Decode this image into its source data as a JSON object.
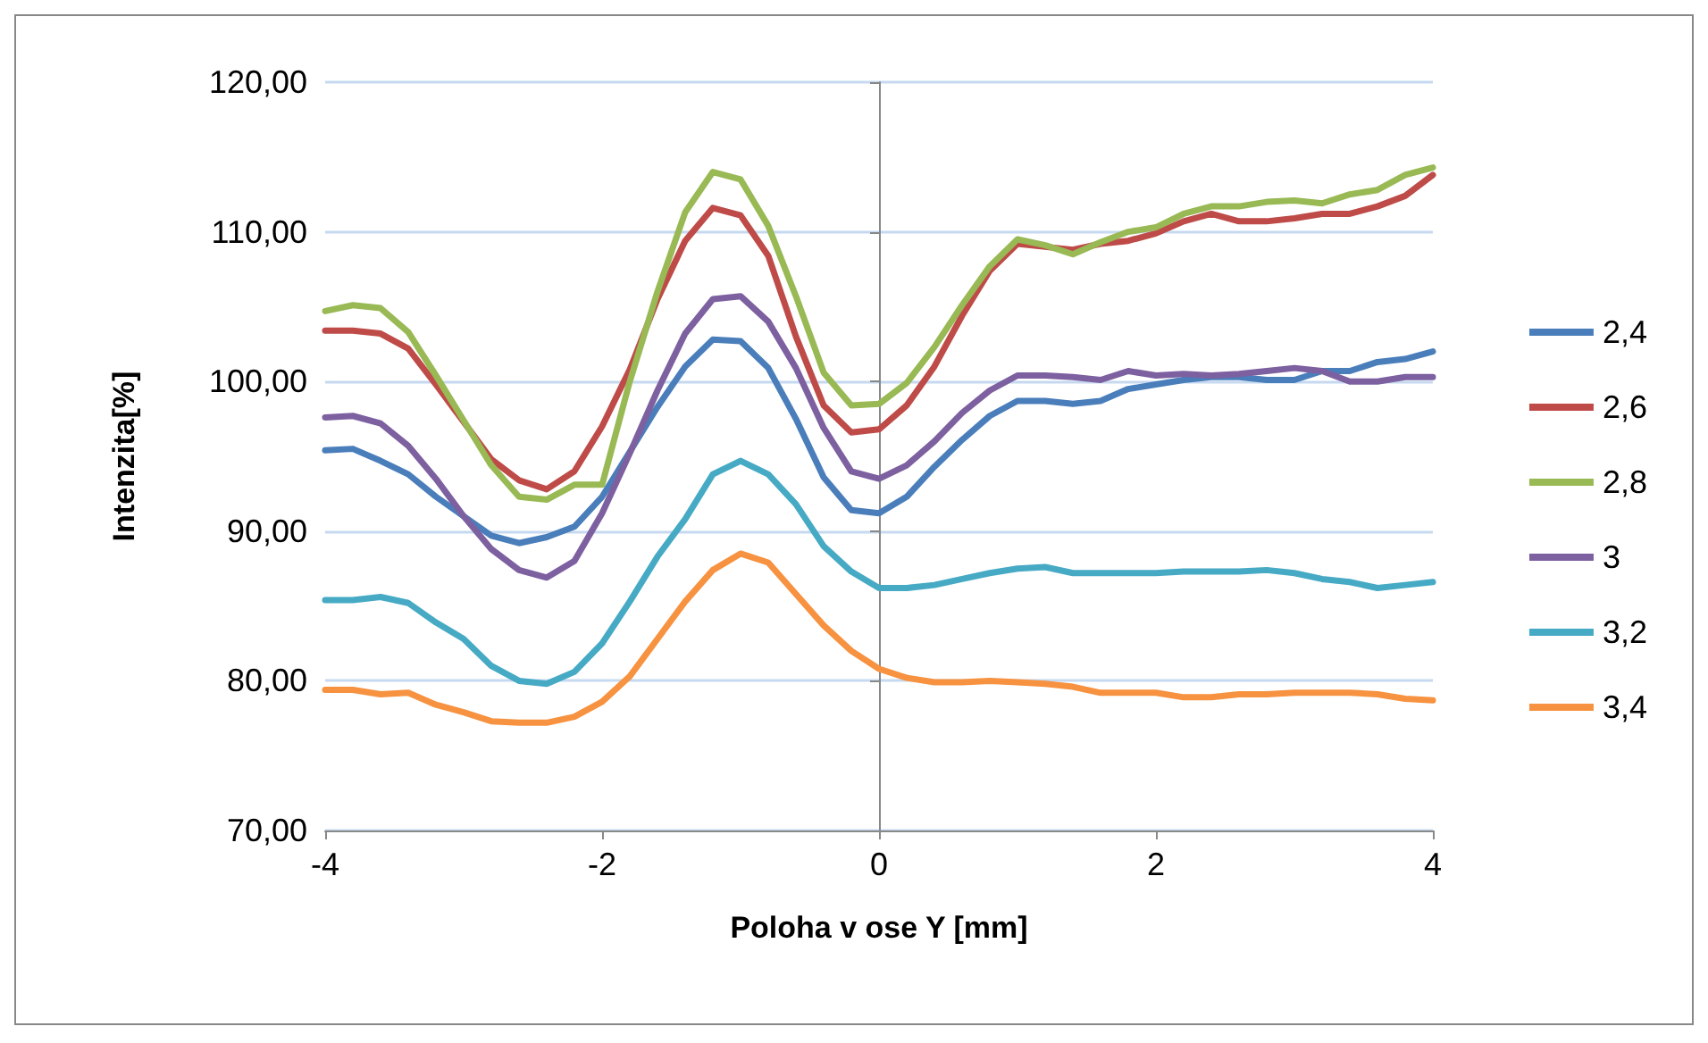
{
  "chart_data": {
    "type": "line",
    "xlabel": "Poloha v ose Y [mm]",
    "ylabel": "Intenzita[%]",
    "x": [
      -4,
      -3.8,
      -3.6,
      -3.4,
      -3.2,
      -3,
      -2.8,
      -2.6,
      -2.4,
      -2.2,
      -2,
      -1.8,
      -1.6,
      -1.4,
      -1.2,
      -1,
      -0.8,
      -0.6,
      -0.4,
      -0.2,
      0,
      0.2,
      0.4,
      0.6,
      0.8,
      1,
      1.2,
      1.4,
      1.6,
      1.8,
      2,
      2.2,
      2.4,
      2.6,
      2.8,
      3,
      3.2,
      3.4,
      3.6,
      3.8,
      4
    ],
    "xlim": [
      -4,
      4
    ],
    "xticks": [
      -4,
      -2,
      0,
      2,
      4
    ],
    "ylim": [
      70,
      120
    ],
    "yticks": [
      {
        "value": 70,
        "label": "70,00"
      },
      {
        "value": 80,
        "label": "80,00"
      },
      {
        "value": 90,
        "label": "90,00"
      },
      {
        "value": 100,
        "label": "100,00"
      },
      {
        "value": 110,
        "label": "110,00"
      },
      {
        "value": 120,
        "label": "120,00"
      }
    ],
    "grid": "y",
    "legend": "right",
    "marker": "none",
    "line_style": "solid",
    "series": [
      {
        "name": "2,4",
        "color": "#4a7ebb",
        "values": [
          95.4,
          95.5,
          94.7,
          93.8,
          92.3,
          91,
          89.7,
          89.2,
          89.6,
          90.3,
          92.3,
          95.3,
          98.3,
          101,
          102.8,
          102.7,
          100.9,
          97.5,
          93.6,
          91.4,
          91.2,
          92.3,
          94.3,
          96.1,
          97.7,
          98.7,
          98.7,
          98.5,
          98.7,
          99.5,
          99.8,
          100.1,
          100.3,
          100.3,
          100.1,
          100.1,
          100.7,
          100.7,
          101.3,
          101.5,
          102
        ]
      },
      {
        "name": "2,6",
        "color": "#be4b48",
        "values": [
          103.4,
          103.4,
          103.2,
          102.2,
          99.8,
          97.3,
          94.8,
          93.4,
          92.8,
          94,
          97,
          100.8,
          105.5,
          109.4,
          111.6,
          111.1,
          108.4,
          103,
          98.4,
          96.6,
          96.8,
          98.4,
          101,
          104.4,
          107.4,
          109.2,
          109,
          108.8,
          109.2,
          109.4,
          109.9,
          110.7,
          111.2,
          110.7,
          110.7,
          110.9,
          111.2,
          111.2,
          111.7,
          112.4,
          113.8
        ]
      },
      {
        "name": "2,8",
        "color": "#98b954",
        "values": [
          104.7,
          105.1,
          104.9,
          103.3,
          100.4,
          97.4,
          94.4,
          92.3,
          92.1,
          93.1,
          93.1,
          100,
          106,
          111.3,
          114,
          113.5,
          110.4,
          105.7,
          100.6,
          98.4,
          98.5,
          99.9,
          102.3,
          105.1,
          107.7,
          109.5,
          109.1,
          108.5,
          109.3,
          110,
          110.3,
          111.2,
          111.7,
          111.7,
          112,
          112.1,
          111.9,
          112.5,
          112.8,
          113.8,
          114.3
        ]
      },
      {
        "name": "3",
        "color": "#7d60a0",
        "values": [
          97.6,
          97.7,
          97.2,
          95.7,
          93.5,
          91,
          88.8,
          87.4,
          86.9,
          88,
          91.2,
          95.2,
          99.4,
          103.2,
          105.5,
          105.7,
          104,
          100.9,
          96.9,
          94,
          93.5,
          94.4,
          96,
          97.9,
          99.4,
          100.4,
          100.4,
          100.3,
          100.1,
          100.7,
          100.4,
          100.5,
          100.4,
          100.5,
          100.7,
          100.9,
          100.7,
          100,
          100,
          100.3,
          100.3
        ]
      },
      {
        "name": "3,2",
        "color": "#46aac5",
        "values": [
          85.4,
          85.4,
          85.6,
          85.2,
          83.9,
          82.8,
          81,
          80,
          79.8,
          80.6,
          82.5,
          85.3,
          88.3,
          90.8,
          93.8,
          94.7,
          93.8,
          91.8,
          89,
          87.3,
          86.2,
          86.2,
          86.4,
          86.8,
          87.2,
          87.5,
          87.6,
          87.2,
          87.2,
          87.2,
          87.2,
          87.3,
          87.3,
          87.3,
          87.4,
          87.2,
          86.8,
          86.6,
          86.2,
          86.4,
          86.6
        ]
      },
      {
        "name": "3,4",
        "color": "#f69240",
        "values": [
          79.4,
          79.4,
          79.1,
          79.2,
          78.4,
          77.9,
          77.3,
          77.2,
          77.2,
          77.6,
          78.6,
          80.3,
          82.8,
          85.3,
          87.4,
          88.5,
          87.9,
          85.8,
          83.7,
          82,
          80.8,
          80.2,
          79.9,
          79.9,
          80,
          79.9,
          79.8,
          79.6,
          79.2,
          79.2,
          79.2,
          78.9,
          78.9,
          79.1,
          79.1,
          79.2,
          79.2,
          79.2,
          79.1,
          78.8,
          78.7
        ]
      }
    ]
  }
}
